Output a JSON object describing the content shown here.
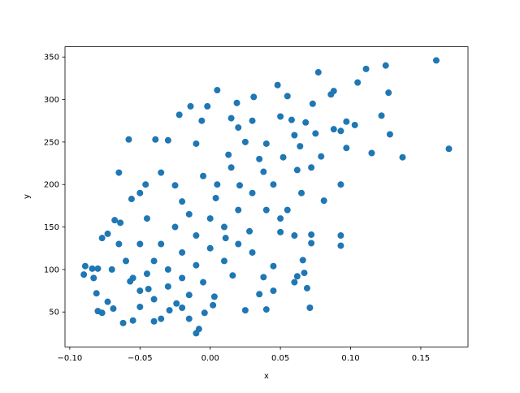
{
  "chart_data": {
    "type": "scatter",
    "xlabel": "x",
    "ylabel": "y",
    "color": "#1f77b4",
    "xlim": [
      -0.1034,
      0.1836
    ],
    "ylim": [
      8.95,
      362.05
    ],
    "xticks": [
      {
        "value": -0.1,
        "label": "−0.10"
      },
      {
        "value": -0.05,
        "label": "−0.05"
      },
      {
        "value": 0.0,
        "label": "0.00"
      },
      {
        "value": 0.05,
        "label": "0.05"
      },
      {
        "value": 0.1,
        "label": "0.10"
      },
      {
        "value": 0.15,
        "label": "0.15"
      }
    ],
    "yticks": [
      50,
      100,
      150,
      200,
      250,
      300,
      350
    ],
    "x": [
      0.17,
      0.161,
      0.137,
      0.128,
      0.127,
      0.125,
      0.122,
      0.115,
      0.111,
      0.105,
      0.103,
      0.097,
      0.097,
      0.093,
      0.093,
      0.093,
      0.093,
      0.088,
      0.086,
      0.088,
      0.081,
      0.079,
      0.077,
      0.073,
      0.072,
      0.071,
      0.072,
      0.072,
      0.069,
      0.067,
      0.066,
      0.062,
      0.06,
      0.062,
      0.064,
      0.058,
      0.055,
      0.052,
      0.05,
      0.048,
      0.045,
      0.04,
      0.038,
      0.035,
      0.038,
      0.031,
      0.028,
      0.025,
      0.021,
      0.019,
      0.016,
      0.013,
      0.011,
      0.005,
      0.004,
      0.003,
      0.002,
      -0.004,
      -0.01,
      -0.008,
      -0.015,
      -0.02,
      -0.024,
      -0.029,
      -0.035,
      -0.04,
      -0.044,
      -0.05,
      -0.055,
      -0.058,
      -0.057,
      -0.062,
      -0.065,
      -0.064,
      -0.069,
      -0.073,
      -0.077,
      -0.08,
      -0.081,
      -0.083,
      -0.09,
      -0.089,
      -0.084,
      -0.08,
      -0.077,
      -0.073,
      -0.068,
      -0.056,
      -0.05,
      -0.046,
      -0.039,
      -0.03,
      -0.014,
      -0.002,
      -0.022,
      -0.006,
      0.015,
      0.03,
      0.02,
      0.04,
      0.05,
      0.06,
      0.068,
      0.075,
      -0.01,
      -0.035,
      -0.025,
      -0.02,
      -0.045,
      -0.05,
      -0.04,
      -0.03,
      -0.02,
      -0.01,
      0.0,
      0.01,
      0.02,
      0.03,
      0.04,
      0.05,
      0.06,
      0.045,
      0.035,
      0.025,
      0.015,
      0.005,
      -0.005,
      -0.015,
      -0.025,
      -0.035,
      -0.045,
      -0.055,
      -0.06,
      -0.05,
      -0.04,
      -0.03,
      -0.02,
      -0.01,
      0.0,
      0.01,
      0.02,
      -0.065,
      -0.07,
      0.03,
      0.045,
      0.055,
      0.065,
      -0.015,
      -0.005
    ],
    "y": [
      242,
      346,
      232,
      259,
      308,
      340,
      281,
      237,
      336,
      320,
      270,
      243,
      274,
      263,
      200,
      140,
      128,
      310,
      306,
      265,
      181,
      233,
      332,
      295,
      220,
      55,
      131,
      141,
      78,
      96,
      111,
      92,
      85,
      217,
      245,
      276,
      304,
      232,
      144,
      317,
      104,
      53,
      91,
      71,
      215,
      303,
      145,
      52,
      199,
      296,
      93,
      235,
      137,
      311,
      184,
      68,
      58,
      49,
      25,
      30,
      42,
      55,
      60,
      52,
      42,
      39,
      77,
      56,
      40,
      253,
      86,
      37,
      214,
      155,
      54,
      62,
      49,
      51,
      72,
      90,
      94,
      104,
      101,
      101,
      137,
      142,
      158,
      183,
      190,
      200,
      253,
      252,
      292,
      292,
      282,
      275,
      278,
      275,
      267,
      248,
      280,
      258,
      273,
      260,
      248,
      214,
      199,
      180,
      160,
      130,
      110,
      100,
      120,
      140,
      160,
      150,
      170,
      190,
      170,
      160,
      140,
      200,
      230,
      250,
      220,
      200,
      210,
      165,
      150,
      130,
      95,
      90,
      110,
      75,
      65,
      80,
      90,
      105,
      125,
      110,
      130,
      130,
      100,
      120,
      75,
      170,
      190,
      70,
      85
    ]
  }
}
